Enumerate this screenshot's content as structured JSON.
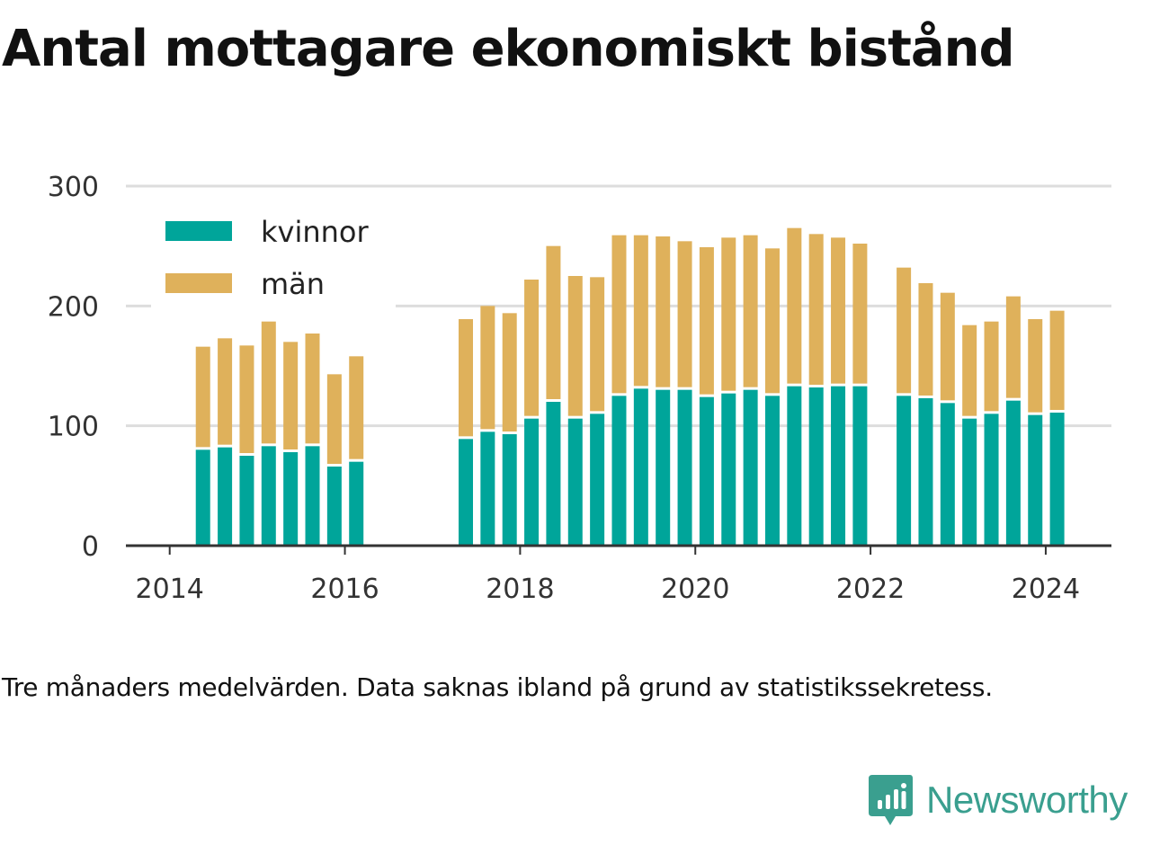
{
  "title": "Antal mottagare ekonomiskt bistånd",
  "note": "Tre månaders medelvärden. Data saknas ibland på grund av statistikssekretess.",
  "brand": {
    "name": "Newsworthy",
    "icon": "newsworthy-logo-icon"
  },
  "colors": {
    "kvinnor": "#00a59a",
    "man": "#dfb15b",
    "grid": "#dddddd",
    "axis": "#333333"
  },
  "chart_data": {
    "type": "bar",
    "stacked": true,
    "title": "Antal mottagare ekonomiskt bistånd",
    "xlabel": "",
    "ylabel": "",
    "ylim": [
      0,
      300
    ],
    "yticks": [
      "0",
      "100",
      "200",
      "300"
    ],
    "xticks": [
      "2014",
      "2016",
      "2018",
      "2020",
      "2022",
      "2024"
    ],
    "xlim": [
      2013.5,
      2024.75
    ],
    "grid": true,
    "legend": "top-left",
    "x": [
      2014.38,
      2014.63,
      2014.88,
      2015.13,
      2015.38,
      2015.63,
      2015.88,
      2016.13,
      2017.38,
      2017.63,
      2017.88,
      2018.13,
      2018.38,
      2018.63,
      2018.88,
      2019.13,
      2019.38,
      2019.63,
      2019.88,
      2020.13,
      2020.38,
      2020.63,
      2020.88,
      2021.13,
      2021.38,
      2021.63,
      2021.88,
      2022.38,
      2022.63,
      2022.88,
      2023.13,
      2023.38,
      2023.63,
      2023.88,
      2024.13
    ],
    "series": [
      {
        "name": "kvinnor",
        "values": [
          80,
          82,
          75,
          83,
          78,
          83,
          66,
          70,
          89,
          95,
          93,
          106,
          120,
          106,
          110,
          125,
          131,
          130,
          130,
          124,
          127,
          130,
          125,
          133,
          132,
          133,
          133,
          125,
          123,
          119,
          106,
          110,
          121,
          109,
          111
        ]
      },
      {
        "name": "män",
        "values": [
          86,
          91,
          92,
          104,
          92,
          94,
          77,
          88,
          100,
          105,
          101,
          116,
          130,
          119,
          114,
          134,
          128,
          128,
          124,
          125,
          130,
          129,
          123,
          132,
          128,
          124,
          119,
          107,
          96,
          92,
          78,
          77,
          87,
          80,
          85
        ]
      }
    ]
  }
}
